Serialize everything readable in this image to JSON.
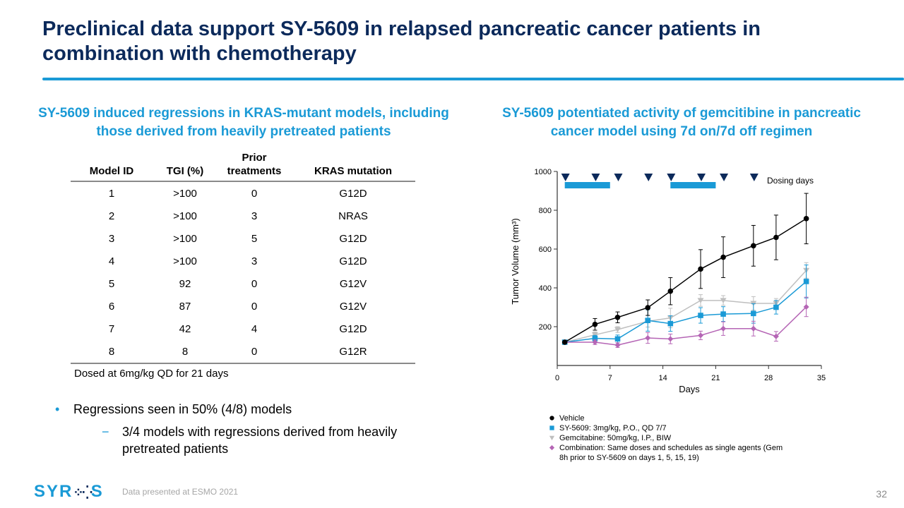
{
  "slide": {
    "title": "Preclinical data support SY-5609 in relapsed pancreatic cancer patients in combination with chemotherapy",
    "page_number": "32",
    "footer_note": "Data presented at ESMO 2021",
    "logo_text": {
      "a": "SY",
      "b": "R",
      "c": "S"
    },
    "colors": {
      "title": "#0c2a5b",
      "accent": "#1a9ad6"
    }
  },
  "left": {
    "heading": "SY-5609 induced regressions in KRAS-mutant models, including those derived from heavily pretreated patients",
    "table": {
      "headers": [
        "Model ID",
        "TGI (%)",
        "Prior treatments",
        "KRAS mutation"
      ],
      "rows": [
        [
          "1",
          ">100",
          "0",
          "G12D"
        ],
        [
          "2",
          ">100",
          "3",
          "NRAS"
        ],
        [
          "3",
          ">100",
          "5",
          "G12D"
        ],
        [
          "4",
          ">100",
          "3",
          "G12D"
        ],
        [
          "5",
          "92",
          "0",
          "G12V"
        ],
        [
          "6",
          "87",
          "0",
          "G12V"
        ],
        [
          "7",
          "42",
          "4",
          "G12D"
        ],
        [
          "8",
          "8",
          "0",
          "G12R"
        ]
      ]
    },
    "footnote": "Dosed at 6mg/kg QD for 21 days",
    "bullet": "Regressions seen in 50% (4/8) models",
    "sub_bullet": "3/4 models with regressions derived from heavily pretreated patients",
    "bullet_marker": "•",
    "sub_bullet_marker": "−"
  },
  "right": {
    "heading": "SY-5609 potentiated activity of gemcitibine in pancreatic cancer model using 7d on/7d off regimen"
  },
  "chart_data": {
    "type": "line",
    "title": "",
    "xlabel": "Days",
    "ylabel": "Tumor Volume (mm³)",
    "xlim": [
      0,
      35
    ],
    "ylim": [
      0,
      1000
    ],
    "xticks": [
      0,
      7,
      14,
      21,
      28,
      35
    ],
    "yticks": [
      200,
      400,
      600,
      800,
      1000
    ],
    "grid": false,
    "x": [
      1,
      5,
      8,
      12,
      15,
      19,
      22,
      26,
      29,
      33
    ],
    "series": [
      {
        "name": "Vehicle",
        "color": "#000000",
        "marker": "circle",
        "values": [
          120,
          212,
          248,
          298,
          383,
          497,
          558,
          617,
          660,
          757
        ],
        "errors": [
          0,
          30,
          28,
          40,
          70,
          100,
          105,
          105,
          115,
          130
        ]
      },
      {
        "name": "SY-5609: 3mg/kg, P.O., QD 7/7",
        "color": "#1a9ad6",
        "marker": "square",
        "values": [
          120,
          140,
          137,
          232,
          216,
          258,
          265,
          268,
          300,
          433
        ],
        "errors": [
          0,
          15,
          20,
          55,
          40,
          40,
          38,
          50,
          35,
          85
        ]
      },
      {
        "name": "Gemcitabine: 50mg/kg, I.P., BIW",
        "color": "#bfbfbf",
        "marker": "triangle-down",
        "values": [
          120,
          158,
          185,
          228,
          245,
          335,
          335,
          320,
          320,
          490
        ],
        "errors": [
          0,
          15,
          15,
          30,
          50,
          30,
          25,
          35,
          25,
          40
        ]
      },
      {
        "name": "Combination: Same doses and schedules as single agents (Gem 8h prior to SY-5609 on days 1, 5, 15, 19)",
        "color": "#b565b5",
        "marker": "diamond",
        "values": [
          120,
          120,
          105,
          142,
          137,
          155,
          190,
          190,
          150,
          302
        ],
        "errors": [
          0,
          12,
          12,
          28,
          25,
          22,
          35,
          38,
          25,
          50
        ]
      }
    ],
    "annotations": {
      "dosing_label": "Dosing days",
      "dosing_triangle_days": [
        1,
        5,
        8,
        12,
        15,
        19,
        22,
        26
      ],
      "dosing_bars": [
        [
          1,
          7
        ],
        [
          15,
          21
        ]
      ],
      "dosing_triangle_color": "#0c2a5b",
      "dosing_bar_color": "#1a9ad6"
    },
    "legend_placement": "bottom"
  }
}
